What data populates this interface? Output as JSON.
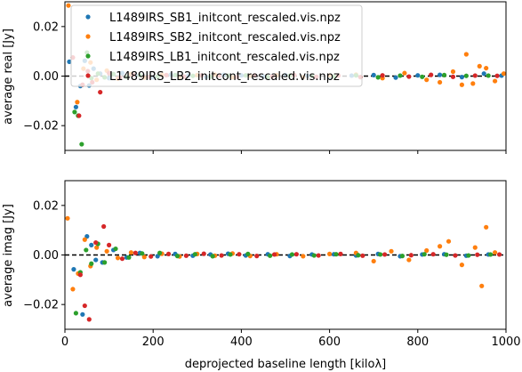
{
  "chart_data": [
    {
      "type": "scatter",
      "panel": "top",
      "xlabel": "",
      "ylabel": "average real [Jy]",
      "xlim": [
        0,
        1000
      ],
      "ylim": [
        -0.03,
        0.03
      ],
      "xticks": [
        0,
        200,
        400,
        600,
        800,
        1000
      ],
      "xtick_labels_visible": false,
      "yticks": [
        -0.02,
        0.0,
        0.02
      ],
      "ytick_labels": [
        "−0.02",
        "0.00",
        "0.02"
      ],
      "reference_line": {
        "y": 0,
        "style": "dashed",
        "color": "#000000"
      },
      "legend": {
        "location": "upper-left",
        "entries": [
          "L1489IRS_SB1_initcont_rescaled.vis.npz",
          "L1489IRS_SB2_initcont_rescaled.vis.npz",
          "L1489IRS_LB1_initcont_rescaled.vis.npz",
          "L1489IRS_LB2_initcont_rescaled.vis.npz"
        ]
      },
      "series": [
        {
          "name": "L1489IRS_SB1_initcont_rescaled.vis.npz",
          "color": "#1f77b4",
          "x": [
            10,
            25,
            35,
            45,
            55,
            65,
            80,
            100,
            130,
            160,
            200,
            240,
            280,
            320,
            360,
            400,
            450,
            500,
            550,
            600,
            650,
            700,
            750,
            800,
            850,
            900,
            950,
            990
          ],
          "y": [
            0.0058,
            -0.0125,
            -0.004,
            0.0062,
            -0.0038,
            0.003,
            0.001,
            -0.0008,
            0.0012,
            0.0004,
            -0.0005,
            0.0006,
            0.0002,
            -0.0004,
            0.0005,
            0.0003,
            -0.0002,
            0.0004,
            0.0001,
            -0.0003,
            0.0002,
            0.0004,
            -0.0006,
            0.0003,
            0.0005,
            -0.0004,
            0.001,
            0.0002
          ]
        },
        {
          "name": "L1489IRS_SB2_initcont_rescaled.vis.npz",
          "color": "#ff7f0e",
          "x": [
            8,
            28,
            42,
            58,
            72,
            95,
            120,
            150,
            180,
            220,
            260,
            300,
            340,
            380,
            420,
            480,
            540,
            600,
            660,
            720,
            770,
            820,
            850,
            880,
            900,
            910,
            925,
            940,
            955,
            975,
            995
          ],
          "y": [
            0.0285,
            -0.0105,
            0.003,
            0.0055,
            -0.0015,
            0.0022,
            -0.001,
            0.0008,
            -0.0006,
            0.0005,
            -0.0003,
            0.0004,
            0.0006,
            -0.0005,
            0.0002,
            0.0004,
            -0.0004,
            0.0003,
            0.0006,
            -0.0008,
            0.0012,
            -0.0015,
            -0.0025,
            0.0018,
            -0.0035,
            0.0088,
            -0.003,
            0.004,
            0.0032,
            -0.002,
            0.001
          ]
        },
        {
          "name": "L1489IRS_LB1_initcont_rescaled.vis.npz",
          "color": "#2ca02c",
          "x": [
            22,
            30,
            38,
            50,
            60,
            75,
            90,
            110,
            140,
            170,
            210,
            250,
            290,
            330,
            370,
            410,
            460,
            510,
            560,
            610,
            660,
            710,
            760,
            810,
            860,
            910,
            960
          ],
          "y": [
            -0.0145,
            -0.016,
            -0.0275,
            0.0095,
            -0.0008,
            0.001,
            -0.0005,
            0.0008,
            -0.0004,
            0.0003,
            -0.0002,
            0.0004,
            0.0001,
            -0.0003,
            0.0002,
            0.0003,
            -0.0004,
            0.0002,
            0.0001,
            -0.0002,
            0.0003,
            -0.0005,
            0.0002,
            -0.0003,
            0.0004,
            0.0001,
            0.0002
          ]
        },
        {
          "name": "L1489IRS_LB2_initcont_rescaled.vis.npz",
          "color": "#d62728",
          "x": [
            18,
            32,
            40,
            52,
            62,
            80,
            100,
            125,
            155,
            190,
            230,
            270,
            310,
            350,
            390,
            430,
            470,
            520,
            570,
            620,
            670,
            720,
            780,
            830,
            880,
            930,
            980
          ],
          "y": [
            0.0075,
            -0.016,
            -0.0035,
            0.002,
            -0.0025,
            -0.0065,
            0.0012,
            -0.0006,
            0.0005,
            -0.0003,
            0.0004,
            -0.0002,
            0.0003,
            0.0002,
            -0.0004,
            0.0003,
            -0.0002,
            0.0004,
            -0.0003,
            0.0002,
            -0.0004,
            0.0003,
            -0.0002,
            0.0005,
            -0.0003,
            0.0002,
            0.0001
          ]
        }
      ]
    },
    {
      "type": "scatter",
      "panel": "bottom",
      "xlabel": "deprojected baseline length [kiloλ]",
      "ylabel": "average imag [Jy]",
      "xlim": [
        0,
        1000
      ],
      "ylim": [
        -0.03,
        0.03
      ],
      "xticks": [
        0,
        200,
        400,
        600,
        800,
        1000
      ],
      "xtick_labels": [
        "0",
        "200",
        "400",
        "600",
        "800",
        "1000"
      ],
      "yticks": [
        -0.02,
        0.0,
        0.02
      ],
      "ytick_labels": [
        "−0.02",
        "0.00",
        "0.02"
      ],
      "reference_line": {
        "y": 0,
        "style": "dashed",
        "color": "#000000"
      },
      "series": [
        {
          "name": "L1489IRS_SB1_initcont_rescaled.vis.npz",
          "color": "#1f77b4",
          "x": [
            20,
            40,
            50,
            60,
            70,
            85,
            110,
            140,
            170,
            210,
            250,
            290,
            330,
            370,
            410,
            460,
            510,
            560,
            610,
            660,
            710,
            760,
            810,
            860,
            910,
            960
          ],
          "y": [
            -0.0058,
            -0.024,
            0.0075,
            0.004,
            -0.002,
            -0.003,
            0.002,
            -0.001,
            0.0008,
            -0.0005,
            0.0004,
            -0.0003,
            0.0002,
            0.0005,
            -0.0002,
            0.0003,
            -0.0004,
            0.0002,
            0.0003,
            -0.0002,
            0.0004,
            -0.0005,
            0.0002,
            0.0003,
            -0.0003,
            0.0002
          ]
        },
        {
          "name": "L1489IRS_SB2_initcont_rescaled.vis.npz",
          "color": "#ff7f0e",
          "x": [
            6,
            18,
            30,
            45,
            58,
            72,
            95,
            120,
            150,
            180,
            220,
            260,
            300,
            340,
            380,
            420,
            480,
            540,
            600,
            660,
            700,
            740,
            780,
            820,
            850,
            870,
            900,
            930,
            945,
            955,
            975
          ],
          "y": [
            0.0148,
            -0.0138,
            -0.0075,
            0.0062,
            -0.0045,
            0.003,
            0.0015,
            -0.0012,
            0.001,
            -0.0008,
            0.0005,
            -0.0006,
            0.0004,
            -0.0003,
            0.0006,
            -0.0004,
            0.0003,
            -0.0005,
            0.0004,
            0.0008,
            -0.0025,
            0.0015,
            -0.002,
            0.0018,
            0.0035,
            0.0055,
            -0.004,
            0.003,
            -0.0125,
            0.0112,
            0.001
          ]
        },
        {
          "name": "L1489IRS_LB1_initcont_rescaled.vis.npz",
          "color": "#2ca02c",
          "x": [
            25,
            35,
            48,
            60,
            75,
            90,
            115,
            145,
            175,
            215,
            255,
            295,
            335,
            375,
            415,
            465,
            515,
            565,
            615,
            665,
            715,
            765,
            815,
            865,
            915,
            965
          ],
          "y": [
            -0.0235,
            -0.007,
            0.002,
            -0.0035,
            0.0045,
            -0.003,
            0.0025,
            -0.001,
            0.0006,
            0.0008,
            -0.0004,
            0.0003,
            -0.0005,
            0.0002,
            0.0004,
            -0.0003,
            0.0002,
            -0.0002,
            0.0003,
            -0.0001,
            0.0002,
            -0.0004,
            0.0003,
            0.0001,
            -0.0002,
            0.0002
          ]
        },
        {
          "name": "L1489IRS_LB2_initcont_rescaled.vis.npz",
          "color": "#d62728",
          "x": [
            35,
            45,
            55,
            70,
            88,
            100,
            130,
            160,
            195,
            235,
            275,
            315,
            355,
            395,
            435,
            475,
            525,
            575,
            625,
            675,
            725,
            785,
            835,
            885,
            935,
            985
          ],
          "y": [
            -0.008,
            -0.0205,
            -0.026,
            0.005,
            0.0115,
            0.004,
            -0.0015,
            0.0008,
            -0.0006,
            0.0004,
            -0.0003,
            0.0005,
            -0.0002,
            0.0003,
            -0.0004,
            0.0002,
            0.0003,
            -0.0002,
            0.0004,
            -0.0003,
            0.0002,
            -0.0001,
            0.0003,
            -0.0002,
            0.0001,
            0.0002
          ]
        }
      ]
    }
  ]
}
